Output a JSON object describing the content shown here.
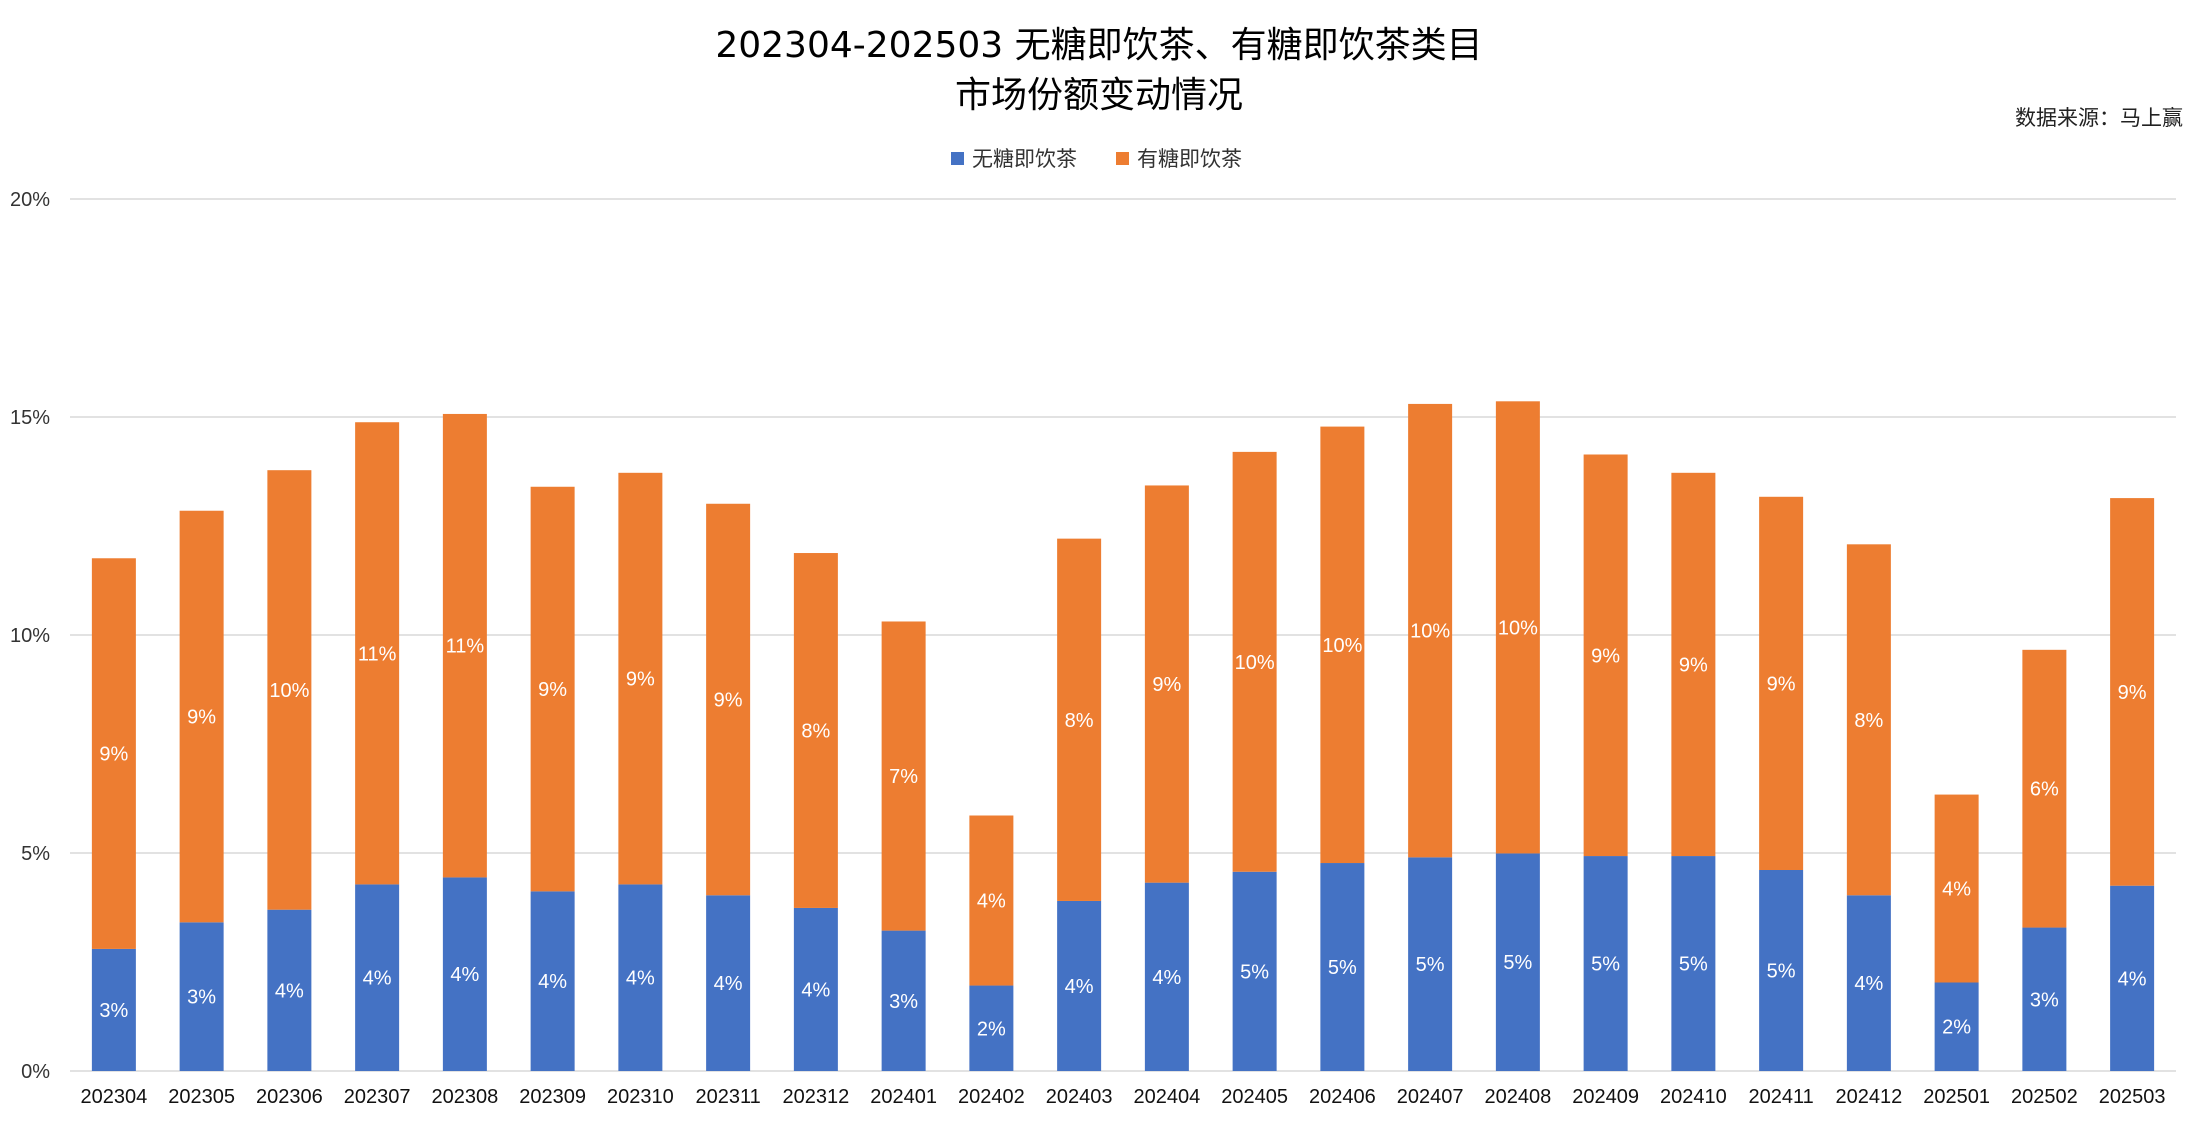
{
  "chart_data": {
    "type": "bar",
    "stacked": true,
    "title": [
      "202304-202503 无糖即饮茶、有糖即饮茶类目",
      "市场份额变动情况"
    ],
    "source": "数据来源：马上赢",
    "legend_position": "top",
    "grid": true,
    "ylim": [
      0,
      20
    ],
    "yticks": [
      "0%",
      "5%",
      "10%",
      "15%",
      "20%"
    ],
    "categories": [
      "202304",
      "202305",
      "202306",
      "202307",
      "202308",
      "202309",
      "202310",
      "202311",
      "202312",
      "202401",
      "202402",
      "202403",
      "202404",
      "202405",
      "202406",
      "202407",
      "202408",
      "202409",
      "202410",
      "202411",
      "202412",
      "202501",
      "202502",
      "202503"
    ],
    "series": [
      {
        "name": "无糖即饮茶",
        "color": "#4472C4",
        "values": [
          2.8,
          3.41,
          3.7,
          4.28,
          4.44,
          4.12,
          4.28,
          4.03,
          3.74,
          3.22,
          1.96,
          3.9,
          4.32,
          4.57,
          4.77,
          4.9,
          4.99,
          4.93,
          4.93,
          4.61,
          4.03,
          2.03,
          3.29,
          4.25
        ],
        "labels": [
          "3%",
          "3%",
          "4%",
          "4%",
          "4%",
          "4%",
          "4%",
          "4%",
          "4%",
          "3%",
          "2%",
          "4%",
          "4%",
          "5%",
          "5%",
          "5%",
          "5%",
          "5%",
          "5%",
          "5%",
          "4%",
          "2%",
          "3%",
          "4%"
        ]
      },
      {
        "name": "有糖即饮茶",
        "color": "#ED7D31",
        "values": [
          8.96,
          9.44,
          10.08,
          10.6,
          10.63,
          9.28,
          9.44,
          8.98,
          8.14,
          7.09,
          3.9,
          8.31,
          9.11,
          9.63,
          10.01,
          10.4,
          10.37,
          9.21,
          8.79,
          8.56,
          8.05,
          4.31,
          6.37,
          8.89
        ],
        "labels": [
          "9%",
          "9%",
          "10%",
          "11%",
          "11%",
          "9%",
          "9%",
          "9%",
          "8%",
          "7%",
          "4%",
          "8%",
          "9%",
          "10%",
          "10%",
          "10%",
          "10%",
          "9%",
          "9%",
          "9%",
          "8%",
          "4%",
          "6%",
          "9%"
        ]
      }
    ]
  }
}
